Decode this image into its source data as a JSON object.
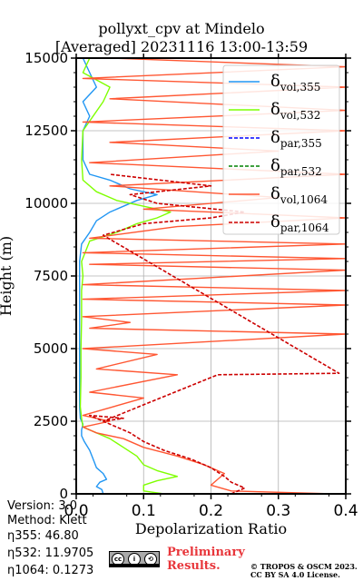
{
  "chart_data": {
    "type": "line",
    "title": "pollyxt_cpv at Mindelo",
    "subtitle": "[Averaged] 20231116 13:00-13:59",
    "xlabel": "Depolarization Ratio",
    "ylabel": "Height (m)",
    "xlim": [
      0.0,
      0.4
    ],
    "ylim": [
      0,
      15000
    ],
    "xticks": [
      "0.0",
      "0.1",
      "0.2",
      "0.3",
      "0.4"
    ],
    "yticks": [
      "0",
      "2500",
      "5000",
      "7500",
      "10000",
      "12500",
      "15000"
    ],
    "grid": true,
    "legend_position": "top-right",
    "legend": [
      {
        "symbol": "δ",
        "sub": "vol,355",
        "color": "#2196f3",
        "dash": false
      },
      {
        "symbol": "δ",
        "sub": "vol,532",
        "color": "#7fff00",
        "dash": false
      },
      {
        "symbol": "δ",
        "sub": "par,355",
        "color": "#0000ff",
        "dash": true
      },
      {
        "symbol": "δ",
        "sub": "par,532",
        "color": "#008000",
        "dash": true
      },
      {
        "symbol": "δ",
        "sub": "vol,1064",
        "color": "#ff5733",
        "dash": false
      },
      {
        "symbol": "δ",
        "sub": "par,1064",
        "color": "#cc0000",
        "dash": true
      }
    ],
    "series": [
      {
        "name": "δvol,355",
        "color": "#2196f3",
        "points": [
          [
            0.04,
            0
          ],
          [
            0.038,
            150
          ],
          [
            0.03,
            250
          ],
          [
            0.035,
            400
          ],
          [
            0.045,
            500
          ],
          [
            0.04,
            700
          ],
          [
            0.03,
            900
          ],
          [
            0.025,
            1200
          ],
          [
            0.02,
            1500
          ],
          [
            0.012,
            1800
          ],
          [
            0.008,
            2000
          ],
          [
            0.008,
            2200
          ],
          [
            0.01,
            2400
          ],
          [
            0.006,
            2600
          ],
          [
            0.005,
            3000
          ],
          [
            0.005,
            4000
          ],
          [
            0.005,
            5000
          ],
          [
            0.005,
            6000
          ],
          [
            0.005,
            7000
          ],
          [
            0.005,
            8000
          ],
          [
            0.008,
            8600
          ],
          [
            0.02,
            9000
          ],
          [
            0.03,
            9400
          ],
          [
            0.05,
            9700
          ],
          [
            0.07,
            9900
          ],
          [
            0.09,
            10100
          ],
          [
            0.12,
            10300
          ],
          [
            0.08,
            10500
          ],
          [
            0.05,
            10800
          ],
          [
            0.02,
            11000
          ],
          [
            0.01,
            11500
          ],
          [
            0.01,
            12500
          ],
          [
            0.02,
            13000
          ],
          [
            0.01,
            13500
          ],
          [
            0.03,
            14000
          ],
          [
            0.02,
            14500
          ],
          [
            0.01,
            15000
          ]
        ]
      },
      {
        "name": "δvol,532",
        "color": "#7fff00",
        "points": [
          [
            0.13,
            0
          ],
          [
            0.1,
            100
          ],
          [
            0.1,
            300
          ],
          [
            0.12,
            450
          ],
          [
            0.15,
            600
          ],
          [
            0.12,
            800
          ],
          [
            0.1,
            1000
          ],
          [
            0.09,
            1300
          ],
          [
            0.07,
            1600
          ],
          [
            0.05,
            1900
          ],
          [
            0.03,
            2100
          ],
          [
            0.01,
            2300
          ],
          [
            0.008,
            2600
          ],
          [
            0.006,
            3000
          ],
          [
            0.007,
            4000
          ],
          [
            0.007,
            5000
          ],
          [
            0.008,
            6000
          ],
          [
            0.008,
            7000
          ],
          [
            0.01,
            7500
          ],
          [
            0.008,
            8000
          ],
          [
            0.02,
            8700
          ],
          [
            0.06,
            9000
          ],
          [
            0.09,
            9300
          ],
          [
            0.12,
            9500
          ],
          [
            0.14,
            9700
          ],
          [
            0.1,
            9900
          ],
          [
            0.06,
            10100
          ],
          [
            0.03,
            10400
          ],
          [
            0.01,
            10800
          ],
          [
            0.008,
            11500
          ],
          [
            0.01,
            12500
          ],
          [
            0.04,
            13500
          ],
          [
            0.05,
            14000
          ],
          [
            0.01,
            14500
          ],
          [
            0.02,
            15000
          ]
        ]
      },
      {
        "name": "δvol,1064",
        "color": "#ff5733",
        "points": [
          [
            0.38,
            0
          ],
          [
            0.23,
            100
          ],
          [
            0.2,
            300
          ],
          [
            0.21,
            500
          ],
          [
            0.22,
            700
          ],
          [
            0.19,
            1000
          ],
          [
            0.15,
            1300
          ],
          [
            0.1,
            1600
          ],
          [
            0.07,
            1900
          ],
          [
            0.03,
            2100
          ],
          [
            0.01,
            2300
          ],
          [
            0.05,
            2500
          ],
          [
            0.01,
            2700
          ],
          [
            0.1,
            3300
          ],
          [
            0.02,
            3500
          ],
          [
            0.15,
            4100
          ],
          [
            0.03,
            4300
          ],
          [
            0.12,
            4800
          ],
          [
            0.01,
            5000
          ],
          [
            0.4,
            5500
          ],
          [
            0.02,
            5700
          ],
          [
            0.08,
            5900
          ],
          [
            0.01,
            6100
          ],
          [
            0.4,
            6500
          ],
          [
            0.01,
            6700
          ],
          [
            0.4,
            7000
          ],
          [
            0.01,
            7200
          ],
          [
            0.4,
            7700
          ],
          [
            0.02,
            7900
          ],
          [
            0.4,
            8100
          ],
          [
            0.01,
            8300
          ],
          [
            0.4,
            8600
          ],
          [
            0.02,
            8800
          ],
          [
            0.15,
            9200
          ],
          [
            0.4,
            9500
          ],
          [
            0.1,
            9800
          ],
          [
            0.3,
            10200
          ],
          [
            0.05,
            10600
          ],
          [
            0.4,
            11000
          ],
          [
            0.02,
            11400
          ],
          [
            0.3,
            11800
          ],
          [
            0.05,
            12100
          ],
          [
            0.4,
            12500
          ],
          [
            0.01,
            12800
          ],
          [
            0.4,
            13200
          ],
          [
            0.05,
            13600
          ],
          [
            0.4,
            14000
          ],
          [
            0.01,
            14300
          ],
          [
            0.4,
            14700
          ],
          [
            0.05,
            15000
          ]
        ]
      },
      {
        "name": "δpar,1064",
        "color": "#cc0000",
        "dashed": true,
        "points": [
          [
            0.23,
            0
          ],
          [
            0.25,
            200
          ],
          [
            0.23,
            400
          ],
          [
            0.22,
            600
          ],
          [
            0.2,
            900
          ],
          [
            0.17,
            1200
          ],
          [
            0.13,
            1500
          ],
          [
            0.1,
            1800
          ],
          [
            0.08,
            2100
          ],
          [
            0.05,
            2400
          ],
          [
            0.02,
            2700
          ],
          [
            0.07,
            2600
          ],
          [
            0.04,
            2500
          ],
          [
            0.21,
            4100
          ],
          [
            0.39,
            4150
          ],
          [
            0.04,
            8900
          ],
          [
            0.1,
            9300
          ],
          [
            0.2,
            9500
          ],
          [
            0.25,
            9700
          ],
          [
            0.12,
            10000
          ],
          [
            0.08,
            10300
          ],
          [
            0.2,
            10600
          ],
          [
            0.05,
            11000
          ]
        ]
      }
    ]
  },
  "footer": {
    "version": "Version: 3.0",
    "method": "Method: Klett",
    "eta355": "η355:  46.80",
    "eta532": "η532: 11.9705",
    "eta1064": "η1064: 0.1273",
    "license_icons": [
      "cc-icon",
      "by-icon",
      "sa-icon"
    ],
    "preliminary_line1": "Preliminary",
    "preliminary_line2": "Results.",
    "copyright_line1": "© TROPOS & OSCM 2023.",
    "copyright_line2": "CC BY SA 4.0 License."
  }
}
